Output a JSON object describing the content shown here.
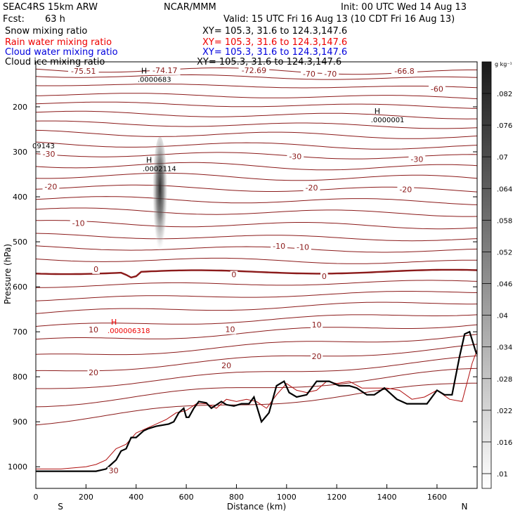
{
  "header": {
    "model": "SEAC4RS 15km ARW",
    "org": "NCAR/MMM",
    "init": "Init: 00 UTC Wed 14 Aug 13",
    "fcst_label": "Fcst:",
    "fcst_value": "63 h",
    "valid": "Valid: 15 UTC Fri 16 Aug 13 (10 CDT Fri 16 Aug 13)"
  },
  "fields": [
    {
      "name": "Snow mixing ratio",
      "color": "#000000",
      "xy": "XY= 105.3, 31.6 to 124.3,147.6"
    },
    {
      "name": "Rain water mixing ratio",
      "color": "#ee0000",
      "xy": "XY= 105.3, 31.6 to 124.3,147.6"
    },
    {
      "name": "Cloud water mixing ratio",
      "color": "#0000dd",
      "xy": "XY= 105.3, 31.6 to 124.3,147.6"
    },
    {
      "name": "Cloud ice mixing ratio",
      "color": "#000000",
      "xy": "XY= 105.3, 31.6 to 124.3,147.6"
    }
  ],
  "chart_data": {
    "type": "cross-section",
    "xlabel": "Distance (km)",
    "ylabel": "Pressure (hPa)",
    "x_ticks": [
      0,
      200,
      400,
      600,
      800,
      1000,
      1200,
      1400,
      1600
    ],
    "y_ticks": [
      200,
      300,
      400,
      500,
      600,
      700,
      800,
      900,
      1000
    ],
    "xlim": [
      0,
      1760
    ],
    "ylim": [
      1050,
      100
    ],
    "start_label": "S",
    "end_label": "N",
    "colorbar": {
      "unit": "g kg⁻¹",
      "ticks": [
        ".01",
        ".016",
        ".022",
        ".028",
        ".034",
        ".04",
        ".046",
        ".052",
        ".058",
        ".064",
        ".07",
        ".076",
        ".082"
      ]
    },
    "temperature_labels": [
      {
        "text": "-75.51",
        "x": 190,
        "p": 122
      },
      {
        "text": "-74.17",
        "x": 515,
        "p": 120
      },
      {
        "text": "-72.69",
        "x": 870,
        "p": 120
      },
      {
        "text": "-70",
        "x": 1090,
        "p": 128
      },
      {
        "text": "-70",
        "x": 1175,
        "p": 128
      },
      {
        "text": "-66.8",
        "x": 1470,
        "p": 122
      },
      {
        "text": "-60",
        "x": 1600,
        "p": 162
      },
      {
        "text": "-30",
        "x": 52,
        "p": 306
      },
      {
        "text": "-30",
        "x": 1035,
        "p": 312
      },
      {
        "text": "-30",
        "x": 1520,
        "p": 318
      },
      {
        "text": "-20",
        "x": 60,
        "p": 379
      },
      {
        "text": "-20",
        "x": 1100,
        "p": 381
      },
      {
        "text": "-20",
        "x": 1475,
        "p": 385
      },
      {
        "text": "-10",
        "x": 170,
        "p": 460
      },
      {
        "text": "-10",
        "x": 970,
        "p": 511
      },
      {
        "text": "-10",
        "x": 1065,
        "p": 513
      },
      {
        "text": "0",
        "x": 240,
        "p": 562
      },
      {
        "text": "0",
        "x": 790,
        "p": 574
      },
      {
        "text": "0",
        "x": 1150,
        "p": 578
      },
      {
        "text": "10",
        "x": 230,
        "p": 697
      },
      {
        "text": "10",
        "x": 775,
        "p": 696
      },
      {
        "text": "10",
        "x": 1120,
        "p": 686
      },
      {
        "text": "20",
        "x": 230,
        "p": 792
      },
      {
        "text": "20",
        "x": 760,
        "p": 776
      },
      {
        "text": "20",
        "x": 1120,
        "p": 756
      },
      {
        "text": "30",
        "x": 310,
        "p": 1010
      }
    ],
    "extrema_labels": [
      {
        "text": "H",
        "value": ".0000683",
        "x": 420,
        "p": 138,
        "color": "#000000"
      },
      {
        "text": "H",
        "value": ".0000001",
        "x": 1350,
        "p": 228,
        "color": "#000000"
      },
      {
        "text": "H",
        "value": ".0002114",
        "x": 440,
        "p": 337,
        "color": "#000000"
      },
      {
        "text": "",
        "value": "09143",
        "x": 0,
        "p": 286,
        "color": "#000000"
      },
      {
        "text": "H",
        "value": ".000006318",
        "x": 300,
        "p": 697,
        "color": "#ee0000"
      }
    ],
    "terrain_km": [
      0,
      100,
      200,
      240,
      280,
      300,
      320,
      340,
      360,
      380,
      400,
      430,
      450,
      480,
      500,
      530,
      550,
      570,
      590,
      600,
      610,
      630,
      650,
      680,
      700,
      740,
      760,
      790,
      820,
      850,
      870,
      900,
      930,
      960,
      990,
      1010,
      1040,
      1080,
      1120,
      1170,
      1210,
      1250,
      1280,
      1320,
      1350,
      1390,
      1420,
      1440,
      1480,
      1520,
      1560,
      1600,
      1630,
      1660,
      1690,
      1710,
      1730,
      1755,
      1760
    ],
    "terrain_p": [
      1010,
      1010,
      1010,
      1010,
      1005,
      995,
      985,
      965,
      960,
      935,
      935,
      920,
      915,
      910,
      908,
      905,
      900,
      880,
      870,
      890,
      890,
      870,
      855,
      858,
      870,
      855,
      862,
      865,
      860,
      860,
      845,
      900,
      880,
      820,
      810,
      835,
      845,
      840,
      810,
      810,
      820,
      820,
      825,
      840,
      840,
      825,
      840,
      850,
      860,
      860,
      860,
      830,
      840,
      840,
      755,
      705,
      700,
      745,
      750
    ],
    "theta_km": [
      0,
      100,
      200,
      240,
      280,
      320,
      360,
      400,
      440,
      480,
      520,
      560,
      600,
      640,
      680,
      720,
      760,
      800,
      840,
      880,
      920,
      960,
      1000,
      1040,
      1080,
      1120,
      1160,
      1200,
      1250,
      1300,
      1350,
      1400,
      1450,
      1500,
      1550,
      1600,
      1650,
      1700,
      1740,
      1760
    ],
    "theta_p": [
      1005,
      1005,
      1000,
      995,
      985,
      960,
      950,
      925,
      915,
      905,
      895,
      880,
      875,
      860,
      860,
      870,
      850,
      855,
      850,
      855,
      870,
      840,
      815,
      830,
      835,
      830,
      810,
      815,
      810,
      825,
      825,
      825,
      830,
      850,
      845,
      830,
      850,
      855,
      770,
      740
    ]
  }
}
